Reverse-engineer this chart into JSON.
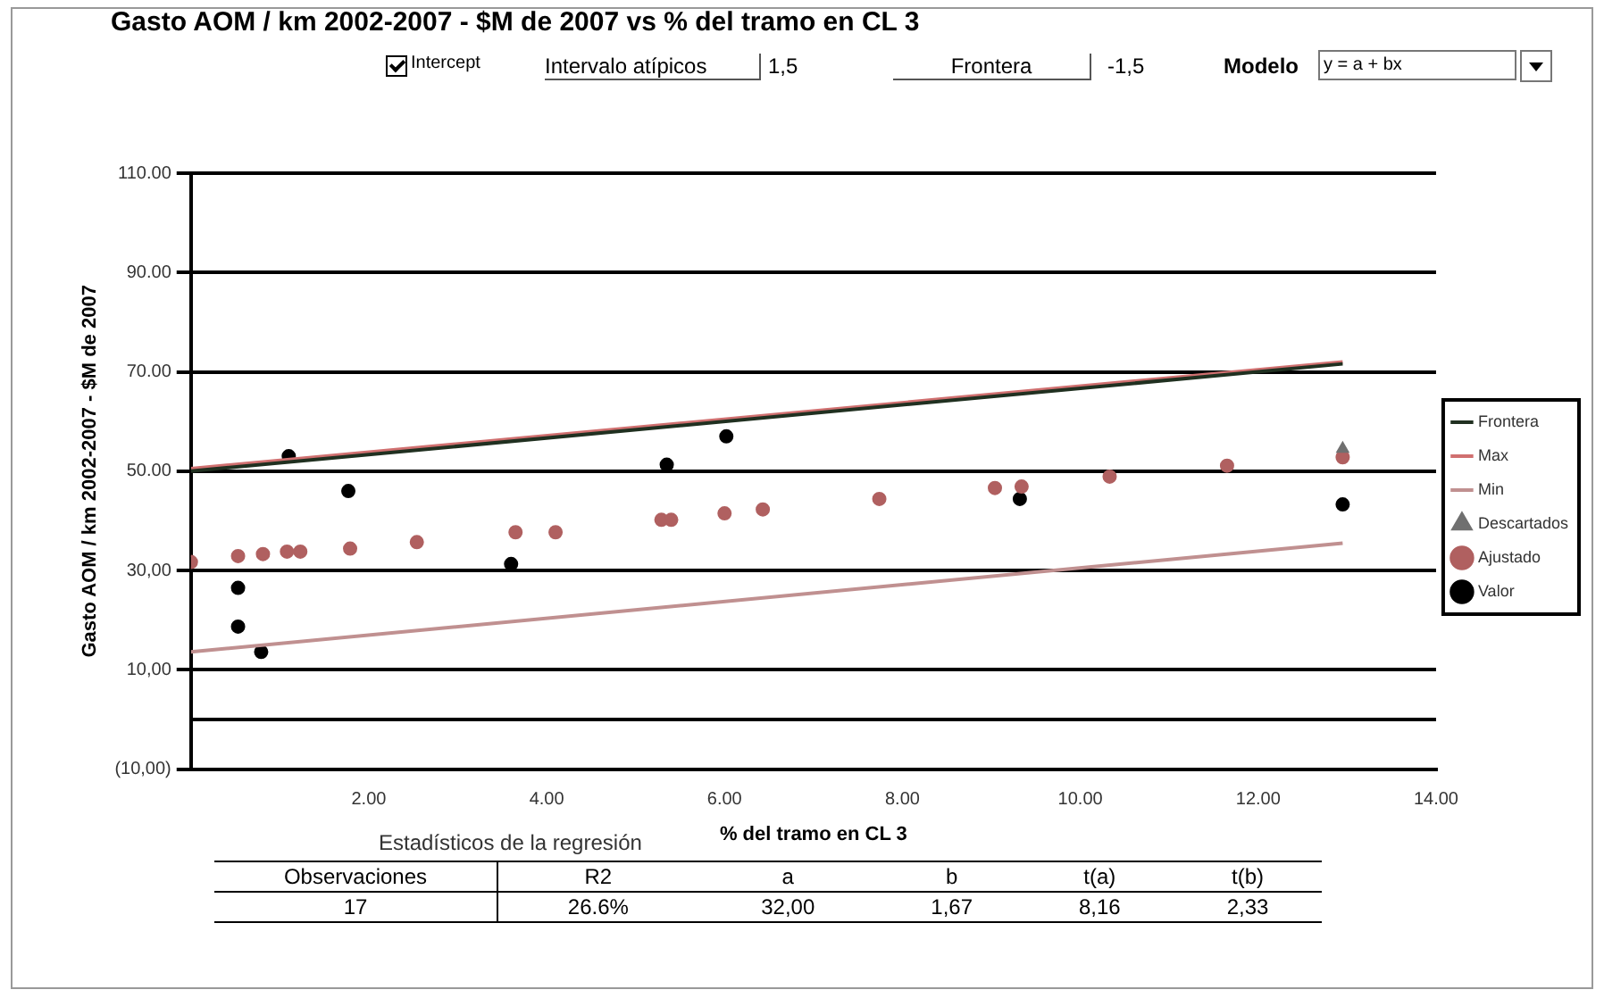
{
  "chart_data": {
    "type": "scatter",
    "title": "Gasto AOM / km 2002-2007 - $M de 2007 vs % del tramo en CL 3",
    "xlabel": "% del tramo en CL 3",
    "ylabel": "Gasto AOM / km 2002-2007 - $M de 2007",
    "xlim": [
      0,
      14
    ],
    "xticks": [
      {
        "value": 2,
        "label": "2.00"
      },
      {
        "value": 4,
        "label": "4.00"
      },
      {
        "value": 6,
        "label": "6.00"
      },
      {
        "value": 8,
        "label": "8.00"
      },
      {
        "value": 10,
        "label": "10.00"
      },
      {
        "value": 12,
        "label": "12.00"
      },
      {
        "value": 14,
        "label": "14.00"
      }
    ],
    "ylim": [
      -10,
      110
    ],
    "yticks": [
      {
        "value": -10,
        "label": "(10,00)"
      },
      {
        "value": 10,
        "label": "10,00"
      },
      {
        "value": 30,
        "label": "30,00"
      },
      {
        "value": 50,
        "label": "50.00"
      },
      {
        "value": 70,
        "label": "70.00"
      },
      {
        "value": 90,
        "label": "90.00"
      },
      {
        "value": 110,
        "label": "110.00"
      }
    ],
    "grid": "y",
    "legend": "right",
    "ref_lines": [
      {
        "axis": "y",
        "value": 0,
        "color": "#000000"
      }
    ],
    "series": [
      {
        "name": "Valor",
        "type": "scatter",
        "marker": "circle",
        "color": "#000000",
        "x": [
          0.53,
          0.53,
          0.79,
          1.1,
          1.77,
          3.6,
          5.35,
          6.02,
          9.32,
          12.95
        ],
        "values": [
          26.5,
          18.7,
          13.6,
          53,
          46,
          31.3,
          51.3,
          57,
          44.4,
          43.3
        ]
      },
      {
        "name": "Ajustado",
        "type": "scatter",
        "marker": "circle",
        "color": "#b06060",
        "x": [
          0,
          0.53,
          0.81,
          1.08,
          1.23,
          1.79,
          2.54,
          3.65,
          4.1,
          5.29,
          5.4,
          6.0,
          6.43,
          7.74,
          9.04,
          9.34,
          10.33,
          11.65,
          12.95
        ],
        "values": [
          31.7,
          32.9,
          33.3,
          33.8,
          33.8,
          34.4,
          35.7,
          37.7,
          37.7,
          40.2,
          40.2,
          41.5,
          42.3,
          44.4,
          46.6,
          46.9,
          48.9,
          51.1,
          52.8
        ]
      },
      {
        "name": "Descartados",
        "type": "scatter",
        "marker": "triangle",
        "color": "#707070",
        "x": [
          12.95
        ],
        "values": [
          54.5
        ]
      },
      {
        "name": "Min",
        "type": "line",
        "marker": "none",
        "color": "#c09090",
        "x": [
          0,
          12.95
        ],
        "values": [
          13.6,
          35.5
        ]
      },
      {
        "name": "Max",
        "type": "line",
        "marker": "none",
        "color": "#d07070",
        "x": [
          0,
          12.95
        ],
        "values": [
          50.5,
          72
        ]
      },
      {
        "name": "Frontera",
        "type": "line",
        "marker": "none",
        "color": "#203020",
        "x": [
          0,
          12.95
        ],
        "values": [
          50,
          71.6
        ]
      }
    ],
    "annotations": [
      "Intercept",
      "Intervalo atípicos",
      "1,5",
      "Frontera",
      "-1,5",
      "Modelo",
      "y = a + bx",
      "Estadísticos de la regresión",
      "Observaciones",
      "R2",
      "a",
      "b",
      "t(a)",
      "t(b)",
      "17",
      "26.6%",
      "32,00",
      "1,67",
      "8,16",
      "2,33"
    ]
  }
}
